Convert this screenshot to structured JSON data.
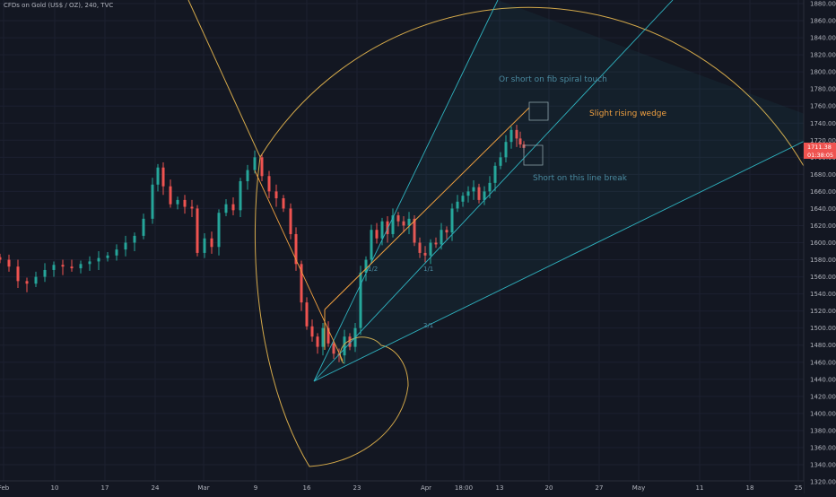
{
  "header": {
    "symbol": "CFDs on Gold (US$ / OZ), 240, TVC"
  },
  "colors": {
    "background": "#131722",
    "grid": "#1e2330",
    "candle_up": "#26a69a",
    "candle_down": "#ef5350",
    "fib_spiral": "#d4a94a",
    "fan_lines": "#2fb3c0",
    "wedge": "#f0a040",
    "price_tag": "#ef5350"
  },
  "price_axis": {
    "ticks": [
      "1880.00",
      "1860.00",
      "1840.00",
      "1820.00",
      "1800.00",
      "1780.00",
      "1760.00",
      "1740.00",
      "1720.00",
      "1700.00",
      "1680.00",
      "1660.00",
      "1640.00",
      "1620.00",
      "1600.00",
      "1580.00",
      "1560.00",
      "1540.00",
      "1520.00",
      "1500.00",
      "1480.00",
      "1460.00",
      "1440.00",
      "1420.00",
      "1400.00",
      "1380.00",
      "1360.00",
      "1340.00",
      "1320.00"
    ],
    "last_price": "1711.38",
    "countdown": "01:38:05"
  },
  "time_axis": {
    "ticks": [
      "Feb",
      "10",
      "17",
      "24",
      "Mar",
      "9",
      "16",
      "23",
      "Apr",
      "18:00",
      "13",
      "20",
      "27",
      "May",
      "11",
      "18",
      "25"
    ]
  },
  "annotations": {
    "spiral_note": "Or short on fib spiral touch",
    "wedge_note": "Slight rising wedge",
    "break_note": "Short on this line break"
  },
  "fan_labels": {
    "half": "1/2",
    "one": "1/1",
    "two": "2/1"
  }
}
